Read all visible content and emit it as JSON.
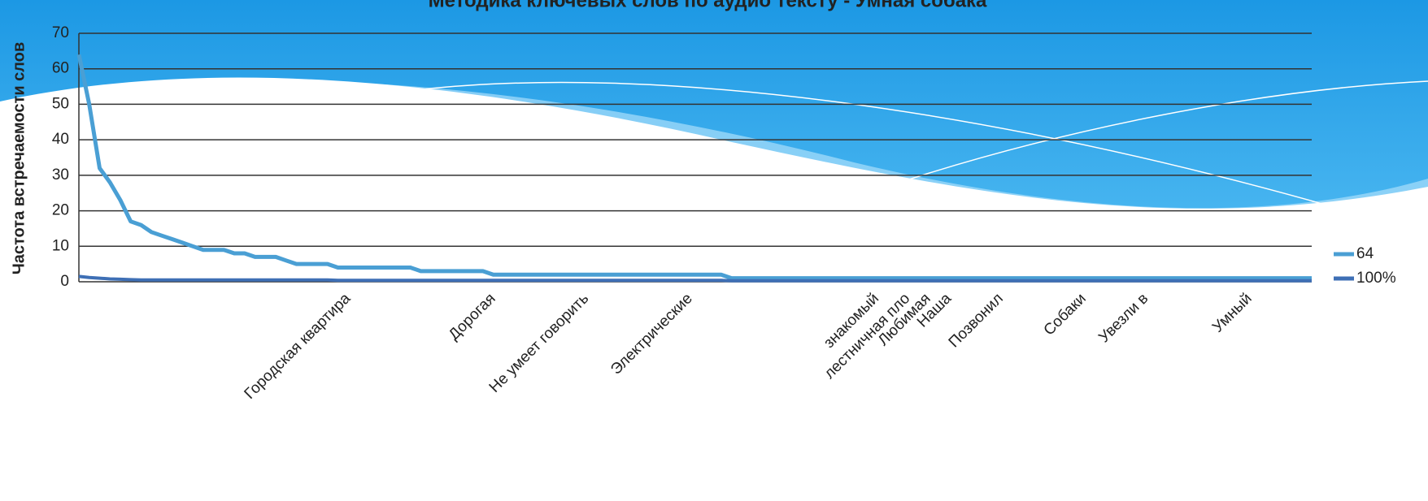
{
  "chart_data": {
    "type": "line",
    "title": "Методика ключевых слов по аудио тексту - Умная собака",
    "y_label": "Частота встречаемости слов",
    "categories": [
      null,
      null,
      null,
      null,
      null,
      null,
      null,
      null,
      null,
      null,
      null,
      null,
      null,
      null,
      null,
      null,
      null,
      null,
      null,
      null,
      null,
      null,
      null,
      null,
      null,
      null,
      "Городская квартира",
      null,
      null,
      null,
      null,
      null,
      null,
      null,
      null,
      null,
      null,
      null,
      null,
      null,
      "Дорогая",
      null,
      null,
      null,
      null,
      null,
      null,
      null,
      null,
      "Не умеет говорить",
      null,
      null,
      null,
      null,
      null,
      null,
      null,
      null,
      null,
      "Электрические",
      null,
      null,
      null,
      null,
      null,
      null,
      null,
      null,
      null,
      null,
      null,
      null,
      null,
      null,
      null,
      null,
      null,
      "знакомый",
      null,
      null,
      "лестничная пло",
      null,
      "Любимая",
      null,
      "Наша",
      null,
      null,
      null,
      null,
      "Позвонил",
      null,
      null,
      null,
      null,
      null,
      null,
      null,
      "Собаки",
      null,
      null,
      null,
      null,
      null,
      "Увезли в",
      null,
      null,
      null,
      null,
      null,
      null,
      null,
      null,
      null,
      "Умный",
      null,
      null,
      null,
      null,
      null,
      null
    ],
    "series": [
      {
        "name": "64",
        "color": "#4a9fd4",
        "values": [
          64,
          50,
          32,
          28,
          23,
          17,
          16,
          14,
          13,
          12,
          11,
          10,
          9,
          9,
          9,
          8,
          8,
          7,
          7,
          7,
          6,
          5,
          5,
          5,
          5,
          4,
          4,
          4,
          4,
          4,
          4,
          4,
          4,
          3,
          3,
          3,
          3,
          3,
          3,
          3,
          2,
          2,
          2,
          2,
          2,
          2,
          2,
          2,
          2,
          2,
          2,
          2,
          2,
          2,
          2,
          2,
          2,
          2,
          2,
          2,
          2,
          2,
          2,
          1,
          1,
          1,
          1,
          1,
          1,
          1,
          1,
          1,
          1,
          1,
          1,
          1,
          1,
          1,
          1,
          1,
          1,
          1,
          1,
          1,
          1,
          1,
          1,
          1,
          1,
          1,
          1,
          1,
          1,
          1,
          1,
          1,
          1,
          1,
          1,
          1,
          1,
          1,
          1,
          1,
          1,
          1,
          1,
          1,
          1,
          1,
          1,
          1,
          1,
          1,
          1,
          1,
          1,
          1,
          1,
          1
        ]
      },
      {
        "name": "100%",
        "color": "#3e6fb5",
        "values": [
          1.5,
          1.2,
          1,
          0.8,
          0.7,
          0.6,
          0.5,
          0.5,
          0.5,
          0.5,
          0.5,
          0.5,
          0.5,
          0.5,
          0.5,
          0.5,
          0.5,
          0.5,
          0.5,
          0.5,
          0.5,
          0.5,
          0.5,
          0.5,
          0.5,
          0.4,
          0.4,
          0.4,
          0.4,
          0.4,
          0.4,
          0.4,
          0.4,
          0.4,
          0.4,
          0.4,
          0.4,
          0.4,
          0.4,
          0.4,
          0.4,
          0.4,
          0.4,
          0.4,
          0.4,
          0.4,
          0.4,
          0.4,
          0.4,
          0.4,
          0.4,
          0.4,
          0.4,
          0.4,
          0.4,
          0.4,
          0.4,
          0.4,
          0.4,
          0.4,
          0.4,
          0.4,
          0.4,
          0.3,
          0.3,
          0.3,
          0.3,
          0.3,
          0.3,
          0.3,
          0.3,
          0.3,
          0.3,
          0.3,
          0.3,
          0.3,
          0.3,
          0.3,
          0.3,
          0.3,
          0.3,
          0.3,
          0.3,
          0.3,
          0.3,
          0.3,
          0.3,
          0.3,
          0.3,
          0.3,
          0.3,
          0.3,
          0.3,
          0.3,
          0.3,
          0.3,
          0.3,
          0.3,
          0.3,
          0.3,
          0.3,
          0.3,
          0.3,
          0.3,
          0.3,
          0.3,
          0.3,
          0.3,
          0.3,
          0.3,
          0.3,
          0.3,
          0.3,
          0.3,
          0.3,
          0.3,
          0.3,
          0.3,
          0.3,
          0.3
        ]
      }
    ],
    "ylim": [
      0,
      70
    ],
    "yticks": [
      0,
      10,
      20,
      30,
      40,
      50,
      60,
      70
    ],
    "grid": true,
    "legend": "right"
  }
}
